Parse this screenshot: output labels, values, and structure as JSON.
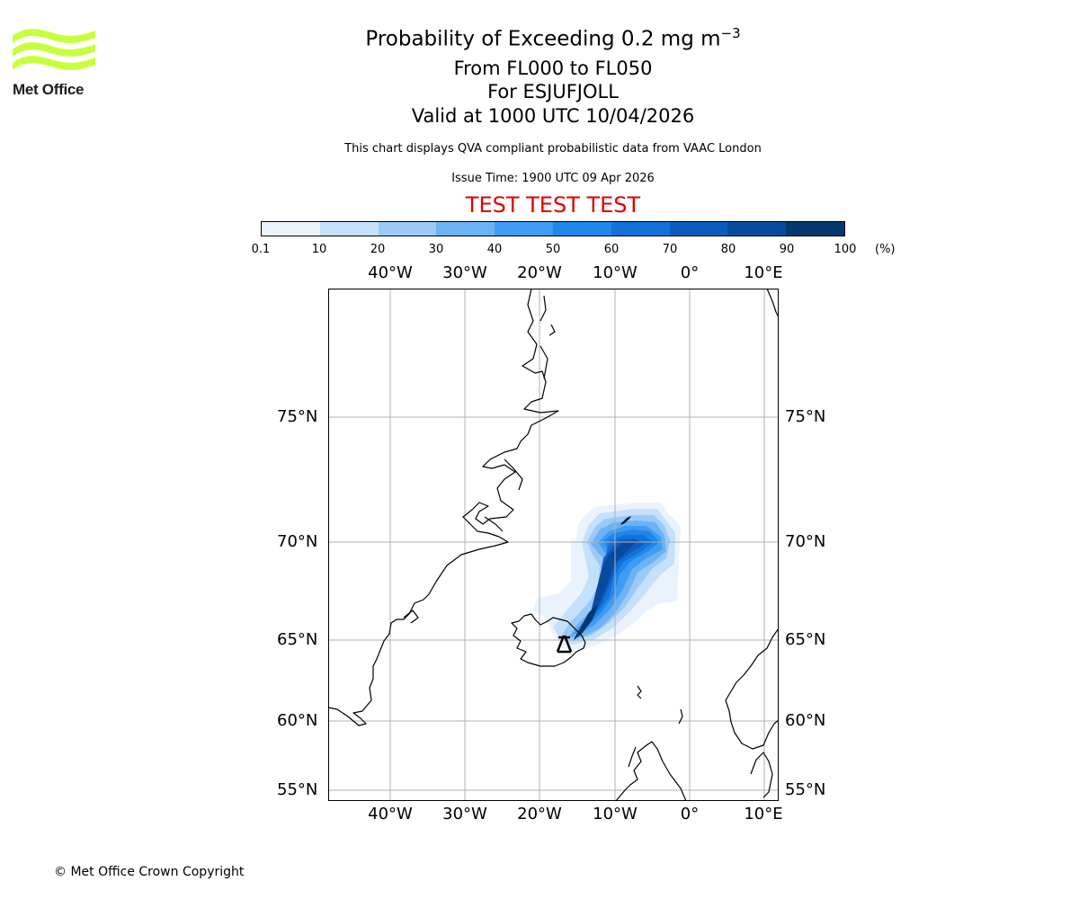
{
  "logo": {
    "text": "Met Office"
  },
  "title": {
    "line1_prefix": "Probability of Exceeding 0.2 mg m",
    "line1_exp": "−3",
    "line2": "From FL000 to FL050",
    "line3": "For ESJUFJOLL",
    "line4": "Valid at 1000 UTC 10/04/2026"
  },
  "subtitle": "This chart displays QVA compliant probabilistic data from VAAC London",
  "issue_time": "Issue Time: 1900 UTC 09 Apr 2026",
  "test_banner": "TEST TEST TEST",
  "colorbar": {
    "ticks": [
      "0.1",
      "10",
      "20",
      "30",
      "40",
      "50",
      "60",
      "70",
      "80",
      "90",
      "100"
    ],
    "unit": "(%)",
    "colors": [
      "#eaf3fd",
      "#c4e0fb",
      "#9ccaf8",
      "#6db2f5",
      "#3f9cf2",
      "#1f86ea",
      "#1371d8",
      "#0b5cbe",
      "#074a9e",
      "#03386f"
    ]
  },
  "axes": {
    "lon_labels": [
      "40°W",
      "30°W",
      "20°W",
      "10°W",
      "0°",
      "10°E"
    ],
    "lat_labels": [
      "75°N",
      "70°N",
      "65°N",
      "60°N",
      "55°N"
    ]
  },
  "map": {
    "extent": {
      "lon": [
        -48,
        12
      ],
      "lat": [
        54.5,
        79
      ]
    },
    "source_marker": "volcano-symbol"
  },
  "copyright": "© Met Office Crown Copyright"
}
